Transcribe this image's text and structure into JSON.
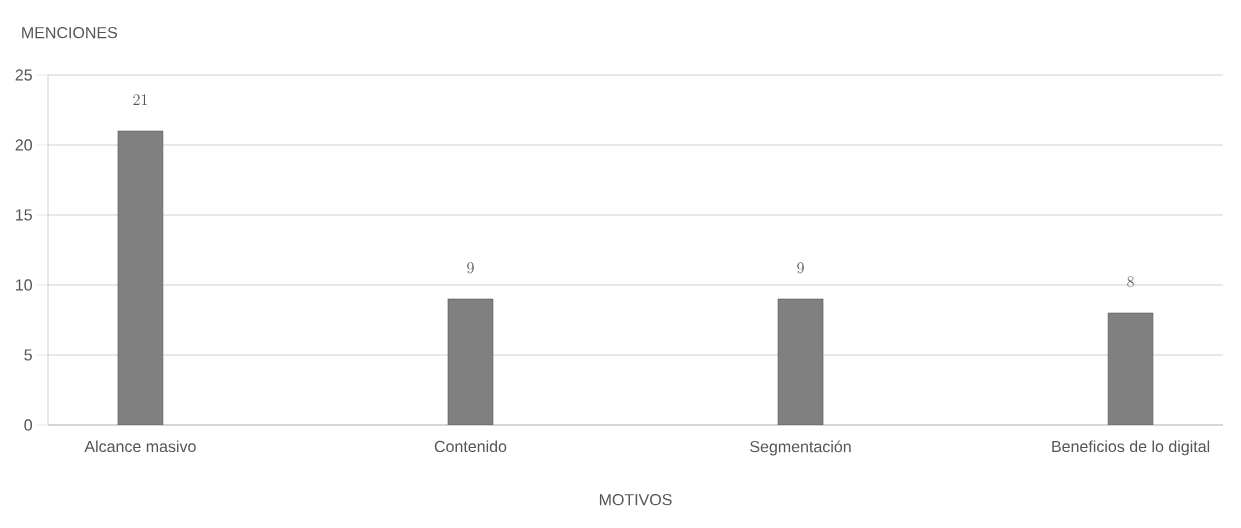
{
  "chart_data": {
    "type": "bar",
    "xlabel": "MOTIVOS",
    "ylabel": "MENCIONES",
    "categories": [
      "Alcance masivo",
      "Contenido",
      "Segmentación",
      "Beneficios de lo digital"
    ],
    "values": [
      21,
      9,
      9,
      8
    ],
    "color": "#808080",
    "ylim": [
      0,
      25
    ],
    "yticks": [
      0,
      5,
      10,
      15,
      20,
      25
    ],
    "grid": "y",
    "data_labels": true
  }
}
